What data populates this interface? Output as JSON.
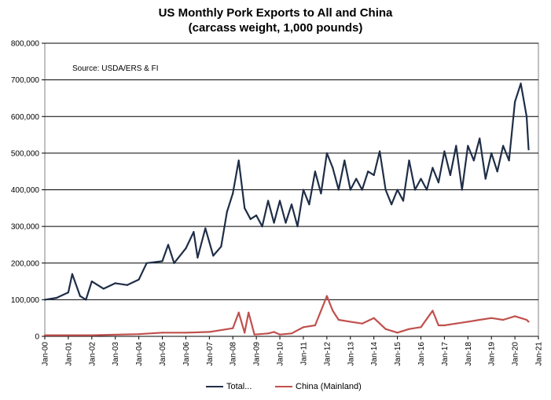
{
  "chart_data": {
    "type": "line",
    "title": "US Monthly Pork Exports to All and China",
    "subtitle": "(carcass weight, 1,000 pounds)",
    "annotation": "Source: USDA/ERS & FI",
    "ylim": [
      0,
      800000
    ],
    "y_ticks": [
      "0",
      "100,000",
      "200,000",
      "300,000",
      "400,000",
      "500,000",
      "600,000",
      "700,000",
      "800,000"
    ],
    "x_ticks": [
      "Jan-00",
      "Jan-01",
      "Jan-02",
      "Jan-03",
      "Jan-04",
      "Jan-05",
      "Jan-06",
      "Jan-07",
      "Jan-08",
      "Jan-09",
      "Jan-10",
      "Jan-11",
      "Jan-12",
      "Jan-13",
      "Jan-14",
      "Jan-15",
      "Jan-16",
      "Jan-17",
      "Jan-18",
      "Jan-19",
      "Jan-20",
      "Jan-21"
    ],
    "x_range": [
      "Jan-00",
      "Jan-21"
    ],
    "grid": "horizontal",
    "legend_position": "bottom",
    "colors": {
      "total": "#1f2e47",
      "china": "#c0504d"
    },
    "series": [
      {
        "name": "Total...",
        "color": "#1f2e47",
        "points": [
          [
            "Jan-00",
            100000
          ],
          [
            "Jul-00",
            105000
          ],
          [
            "Jan-01",
            120000
          ],
          [
            "Mar-01",
            170000
          ],
          [
            "Jul-01",
            110000
          ],
          [
            "Oct-01",
            100000
          ],
          [
            "Jan-02",
            150000
          ],
          [
            "Jul-02",
            130000
          ],
          [
            "Jan-03",
            145000
          ],
          [
            "Jul-03",
            140000
          ],
          [
            "Jan-04",
            155000
          ],
          [
            "May-04",
            200000
          ],
          [
            "Jan-05",
            205000
          ],
          [
            "Apr-05",
            250000
          ],
          [
            "Jul-05",
            200000
          ],
          [
            "Jan-06",
            240000
          ],
          [
            "May-06",
            285000
          ],
          [
            "Jul-06",
            215000
          ],
          [
            "Nov-06",
            295000
          ],
          [
            "Mar-07",
            220000
          ],
          [
            "Jul-07",
            245000
          ],
          [
            "Oct-07",
            340000
          ],
          [
            "Jan-08",
            390000
          ],
          [
            "Apr-08",
            480000
          ],
          [
            "Jul-08",
            350000
          ],
          [
            "Oct-08",
            320000
          ],
          [
            "Jan-09",
            330000
          ],
          [
            "Apr-09",
            300000
          ],
          [
            "Jul-09",
            370000
          ],
          [
            "Oct-09",
            310000
          ],
          [
            "Jan-10",
            370000
          ],
          [
            "Apr-10",
            310000
          ],
          [
            "Jul-10",
            360000
          ],
          [
            "Oct-10",
            300000
          ],
          [
            "Jan-11",
            400000
          ],
          [
            "Apr-11",
            360000
          ],
          [
            "Jul-11",
            450000
          ],
          [
            "Oct-11",
            390000
          ],
          [
            "Jan-12",
            500000
          ],
          [
            "Apr-12",
            460000
          ],
          [
            "Jul-12",
            400000
          ],
          [
            "Oct-12",
            480000
          ],
          [
            "Jan-13",
            400000
          ],
          [
            "Apr-13",
            430000
          ],
          [
            "Jul-13",
            400000
          ],
          [
            "Oct-13",
            450000
          ],
          [
            "Jan-14",
            440000
          ],
          [
            "Apr-14",
            505000
          ],
          [
            "Jul-14",
            400000
          ],
          [
            "Oct-14",
            360000
          ],
          [
            "Jan-15",
            400000
          ],
          [
            "Apr-15",
            370000
          ],
          [
            "Jul-15",
            480000
          ],
          [
            "Oct-15",
            400000
          ],
          [
            "Jan-16",
            430000
          ],
          [
            "Apr-16",
            400000
          ],
          [
            "Jul-16",
            460000
          ],
          [
            "Oct-16",
            420000
          ],
          [
            "Jan-17",
            505000
          ],
          [
            "Apr-17",
            440000
          ],
          [
            "Jul-17",
            520000
          ],
          [
            "Oct-17",
            400000
          ],
          [
            "Jan-18",
            520000
          ],
          [
            "Apr-18",
            480000
          ],
          [
            "Jul-18",
            540000
          ],
          [
            "Oct-18",
            430000
          ],
          [
            "Jan-19",
            500000
          ],
          [
            "Apr-19",
            450000
          ],
          [
            "Jul-19",
            520000
          ],
          [
            "Oct-19",
            480000
          ],
          [
            "Jan-20",
            640000
          ],
          [
            "Apr-20",
            690000
          ],
          [
            "Jul-20",
            600000
          ],
          [
            "Aug-20",
            510000
          ]
        ]
      },
      {
        "name": "China (Mainland)",
        "color": "#c0504d",
        "points": [
          [
            "Jan-00",
            3000
          ],
          [
            "Jan-02",
            3000
          ],
          [
            "Jan-04",
            6000
          ],
          [
            "Jan-05",
            10000
          ],
          [
            "Jan-06",
            10000
          ],
          [
            "Jan-07",
            12000
          ],
          [
            "Jan-08",
            22000
          ],
          [
            "Apr-08",
            65000
          ],
          [
            "Jul-08",
            10000
          ],
          [
            "Sep-08",
            65000
          ],
          [
            "Dec-08",
            5000
          ],
          [
            "Jul-09",
            8000
          ],
          [
            "Oct-09",
            12000
          ],
          [
            "Jan-10",
            5000
          ],
          [
            "Jul-10",
            8000
          ],
          [
            "Jan-11",
            25000
          ],
          [
            "Jul-11",
            30000
          ],
          [
            "Oct-11",
            70000
          ],
          [
            "Jan-12",
            110000
          ],
          [
            "Apr-12",
            70000
          ],
          [
            "Jul-12",
            45000
          ],
          [
            "Jan-13",
            40000
          ],
          [
            "Jul-13",
            35000
          ],
          [
            "Jan-14",
            50000
          ],
          [
            "Jul-14",
            20000
          ],
          [
            "Jan-15",
            10000
          ],
          [
            "Jul-15",
            20000
          ],
          [
            "Jan-16",
            25000
          ],
          [
            "Jul-16",
            70000
          ],
          [
            "Oct-16",
            30000
          ],
          [
            "Jan-17",
            30000
          ],
          [
            "Jul-17",
            35000
          ],
          [
            "Jan-18",
            40000
          ],
          [
            "Jul-18",
            45000
          ],
          [
            "Jan-19",
            50000
          ],
          [
            "Jul-19",
            45000
          ],
          [
            "Jan-20",
            55000
          ],
          [
            "Apr-20",
            50000
          ],
          [
            "Jul-20",
            45000
          ],
          [
            "Aug-20",
            40000
          ]
        ]
      }
    ]
  }
}
